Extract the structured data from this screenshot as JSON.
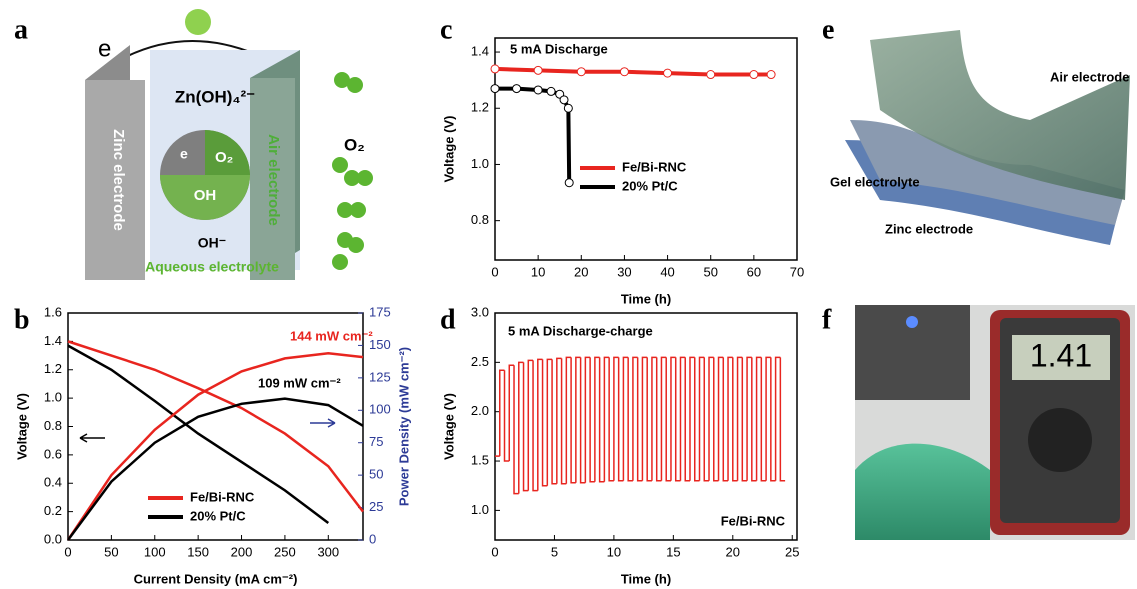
{
  "panel_labels": [
    "a",
    "b",
    "c",
    "d",
    "e",
    "f"
  ],
  "diagram_a": {
    "electron": "e",
    "anode": "Zinc electrode",
    "cathode": "Air electrode",
    "zincate": "Zn(OH)₄²⁻",
    "oxygen": "O₂",
    "pie_labels": [
      "e",
      "O₂",
      "OH"
    ],
    "hydroxide": "OH⁻",
    "electrolyte": "Aqueous electrolyte"
  },
  "diagram_e": {
    "layers": [
      "Air electrode",
      "Gel electrolyte",
      "Zinc electrode"
    ]
  },
  "photo_f": {
    "display": "1.41"
  },
  "chart_data": [
    {
      "type": "line",
      "x_label": "Current Density (mA cm⁻²)",
      "y_label": "Voltage (V)",
      "y2_label": "Power Density (mW cm⁻²)",
      "y2_color": "#2c3a96",
      "x": [
        0,
        50,
        100,
        150,
        200,
        250,
        300,
        340
      ],
      "series": [
        {
          "name": "Fe/Bi-RNC",
          "color": "#e8251f",
          "values": [
            1.4,
            1.3,
            1.2,
            1.07,
            0.93,
            0.75,
            0.52,
            0.2
          ]
        },
        {
          "name": "20% Pt/C",
          "color": "#000000",
          "values": [
            1.37,
            1.2,
            0.98,
            0.75,
            0.55,
            0.35,
            0.12,
            null
          ]
        },
        {
          "name": "Fe/Bi-RNC",
          "color": "#e8251f",
          "axis": "y2",
          "values": [
            0,
            50,
            85,
            112,
            130,
            140,
            144,
            141
          ]
        },
        {
          "name": "20% Pt/C",
          "color": "#000000",
          "axis": "y2",
          "values": [
            0,
            45,
            75,
            95,
            105,
            109,
            104,
            88
          ]
        }
      ],
      "legend_series": [
        0,
        1
      ],
      "legend": "lower left",
      "annotations": [
        "144 mW cm⁻²",
        "109 mW cm⁻²"
      ],
      "xlim": [
        0,
        340
      ],
      "ylim": [
        0,
        1.6
      ],
      "y2lim": [
        0,
        175
      ],
      "xticks": [
        0,
        50,
        100,
        150,
        200,
        250,
        300
      ],
      "yticks": [
        {
          "value": 0,
          "label": "0.0"
        },
        0.2,
        0.4,
        0.6,
        0.8,
        {
          "value": 1,
          "label": "1.0"
        },
        1.2,
        1.4,
        1.6
      ],
      "y2ticks": [
        0,
        25,
        50,
        75,
        100,
        125,
        150,
        175
      ]
    },
    {
      "type": "line",
      "x_label": "Time (h)",
      "y_label": "Voltage (V)",
      "marker": "open-circle",
      "series": [
        {
          "name": "Fe/Bi-RNC",
          "color": "#e8251f",
          "x": [
            0,
            10,
            20,
            30,
            40,
            50,
            60,
            64
          ],
          "values": [
            1.34,
            1.335,
            1.33,
            1.33,
            1.325,
            1.32,
            1.32,
            1.32
          ]
        },
        {
          "name": "20% Pt/C",
          "color": "#000000",
          "x": [
            0,
            5,
            10,
            13,
            15,
            16,
            17,
            17.2
          ],
          "values": [
            1.27,
            1.27,
            1.265,
            1.26,
            1.25,
            1.23,
            1.2,
            0.935
          ]
        }
      ],
      "legend": "center",
      "annotations": [
        "5 mA Discharge"
      ],
      "xlim": [
        0,
        70
      ],
      "ylim": [
        0.66,
        1.45
      ],
      "xticks": [
        0,
        10,
        20,
        30,
        40,
        50,
        60,
        70
      ],
      "yticks": [
        0.8,
        {
          "value": 1,
          "label": "1.0"
        },
        1.2,
        1.4
      ]
    },
    {
      "type": "line",
      "step": true,
      "x_label": "Time (h)",
      "y_label": "Voltage (V)",
      "x": [
        0,
        0.4,
        0.8,
        1.2,
        1.6,
        2,
        2.4,
        2.8,
        3.2,
        3.6,
        4,
        4.4,
        4.8,
        5.2,
        5.6,
        6,
        6.4,
        6.8,
        7.2,
        7.6,
        8,
        8.4,
        8.8,
        9.2,
        9.6,
        10,
        10.4,
        10.8,
        11.2,
        11.6,
        12,
        12.4,
        12.8,
        13.2,
        13.6,
        14,
        14.4,
        14.8,
        15.2,
        15.6,
        16,
        16.4,
        16.8,
        17.2,
        17.6,
        18,
        18.4,
        18.8,
        19.2,
        19.6,
        20,
        20.4,
        20.8,
        21.2,
        21.6,
        22,
        22.4,
        22.8,
        23.2,
        23.6,
        24
      ],
      "series": [
        {
          "name": "Fe/Bi-RNC",
          "color": "#e8251f",
          "values": [
            1.55,
            2.42,
            1.5,
            2.47,
            1.17,
            2.5,
            1.2,
            2.52,
            1.2,
            2.53,
            1.25,
            2.53,
            1.27,
            2.54,
            1.27,
            2.55,
            1.28,
            2.55,
            1.28,
            2.55,
            1.29,
            2.55,
            1.29,
            2.55,
            1.3,
            2.55,
            1.3,
            2.55,
            1.3,
            2.55,
            1.3,
            2.55,
            1.3,
            2.55,
            1.3,
            2.55,
            1.3,
            2.55,
            1.3,
            2.55,
            1.3,
            2.55,
            1.3,
            2.55,
            1.3,
            2.55,
            1.3,
            2.55,
            1.3,
            2.55,
            1.3,
            2.55,
            1.3,
            2.55,
            1.3,
            2.55,
            1.3,
            2.55,
            1.3,
            2.55,
            1.3
          ]
        }
      ],
      "annotations": [
        "5 mA Discharge-charge"
      ],
      "xlim": [
        0,
        25.4
      ],
      "ylim": [
        0.7,
        3
      ],
      "xticks": [
        0,
        5,
        10,
        15,
        20,
        25
      ],
      "yticks": [
        {
          "value": 1,
          "label": "1.0"
        },
        1.5,
        {
          "value": 2,
          "label": "2.0"
        },
        2.5,
        {
          "value": 3,
          "label": "3.0"
        }
      ]
    }
  ]
}
